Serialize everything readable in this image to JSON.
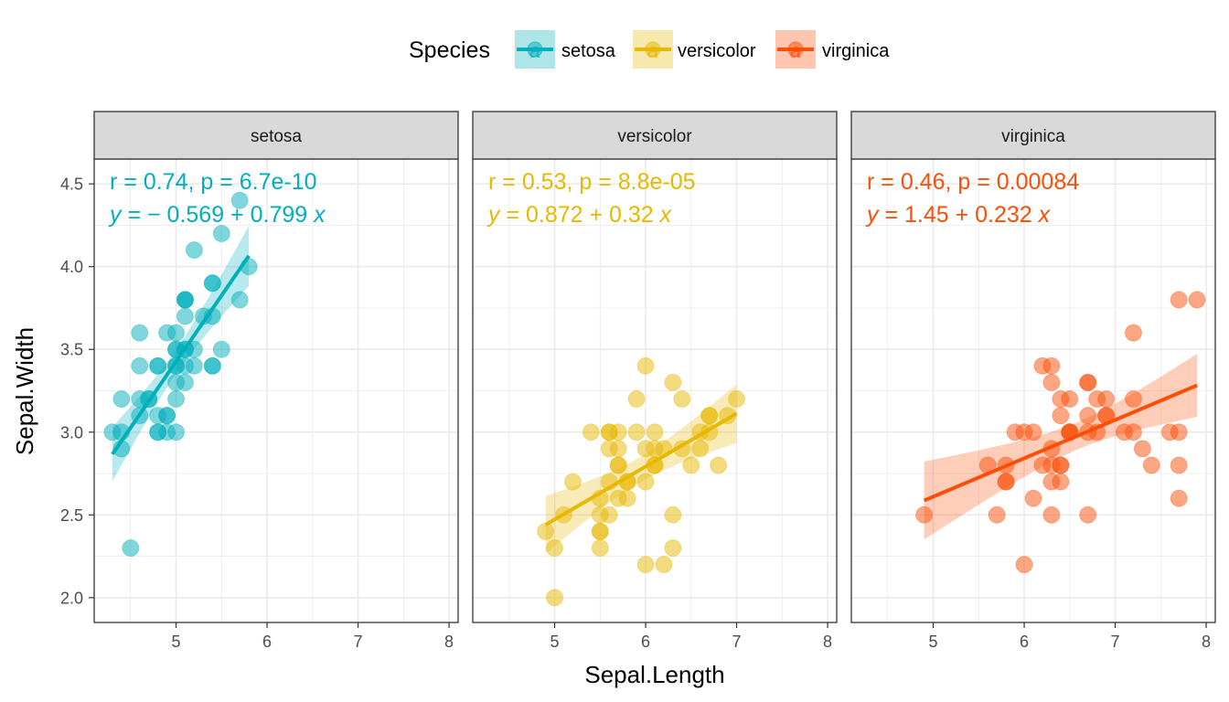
{
  "chart_data": {
    "type": "scatter",
    "xlabel": "Sepal.Length",
    "ylabel": "Sepal.Width",
    "xlim": [
      4.1,
      8.1
    ],
    "ylim": [
      1.85,
      4.65
    ],
    "x_ticks": [
      5,
      6,
      7,
      8
    ],
    "y_ticks": [
      2.0,
      2.5,
      3.0,
      3.5,
      4.0,
      4.5
    ],
    "y_tick_labels": [
      "2.0",
      "2.5",
      "3.0",
      "3.5",
      "4.0",
      "4.5"
    ],
    "grid": true,
    "legend": {
      "title": "Species",
      "position": "top",
      "items": [
        "setosa",
        "versicolor",
        "virginica"
      ]
    },
    "panels": [
      {
        "name": "setosa",
        "color": "#00AFBB",
        "stat_r": "r = 0.74, p = 6.7e-10",
        "eq_y": "y",
        "eq_rest": " = − 0.569 + 0.799 ",
        "eq_x": "x",
        "fit": {
          "x": [
            4.3,
            5.8
          ],
          "intercept": -0.569,
          "slope": 0.799
        },
        "points": [
          [
            5.1,
            3.5
          ],
          [
            4.9,
            3.0
          ],
          [
            4.7,
            3.2
          ],
          [
            4.6,
            3.1
          ],
          [
            5.0,
            3.6
          ],
          [
            5.4,
            3.9
          ],
          [
            4.6,
            3.4
          ],
          [
            5.0,
            3.4
          ],
          [
            4.4,
            2.9
          ],
          [
            4.9,
            3.1
          ],
          [
            5.4,
            3.7
          ],
          [
            4.8,
            3.4
          ],
          [
            4.8,
            3.0
          ],
          [
            4.3,
            3.0
          ],
          [
            5.8,
            4.0
          ],
          [
            5.7,
            4.4
          ],
          [
            5.4,
            3.9
          ],
          [
            5.1,
            3.5
          ],
          [
            5.7,
            3.8
          ],
          [
            5.1,
            3.8
          ],
          [
            5.4,
            3.4
          ],
          [
            5.1,
            3.7
          ],
          [
            4.6,
            3.6
          ],
          [
            5.1,
            3.3
          ],
          [
            4.8,
            3.4
          ],
          [
            5.0,
            3.0
          ],
          [
            5.0,
            3.4
          ],
          [
            5.2,
            3.5
          ],
          [
            5.2,
            3.4
          ],
          [
            4.7,
            3.2
          ],
          [
            4.8,
            3.1
          ],
          [
            5.4,
            3.4
          ],
          [
            5.2,
            4.1
          ],
          [
            5.5,
            4.2
          ],
          [
            4.9,
            3.1
          ],
          [
            5.0,
            3.2
          ],
          [
            5.5,
            3.5
          ],
          [
            4.9,
            3.6
          ],
          [
            4.4,
            3.0
          ],
          [
            5.1,
            3.4
          ],
          [
            5.0,
            3.5
          ],
          [
            4.5,
            2.3
          ],
          [
            4.4,
            3.2
          ],
          [
            5.0,
            3.5
          ],
          [
            5.1,
            3.8
          ],
          [
            4.8,
            3.0
          ],
          [
            5.1,
            3.8
          ],
          [
            4.6,
            3.2
          ],
          [
            5.3,
            3.7
          ],
          [
            5.0,
            3.3
          ]
        ]
      },
      {
        "name": "versicolor",
        "color": "#E7B800",
        "stat_r": "r = 0.53, p = 8.8e-05",
        "eq_y": "y",
        "eq_rest": " = 0.872 + 0.32 ",
        "eq_x": "x",
        "fit": {
          "x": [
            4.9,
            7.0
          ],
          "intercept": 0.872,
          "slope": 0.32
        },
        "points": [
          [
            7.0,
            3.2
          ],
          [
            6.4,
            3.2
          ],
          [
            6.9,
            3.1
          ],
          [
            5.5,
            2.3
          ],
          [
            6.5,
            2.8
          ],
          [
            5.7,
            2.8
          ],
          [
            6.3,
            3.3
          ],
          [
            4.9,
            2.4
          ],
          [
            6.6,
            2.9
          ],
          [
            5.2,
            2.7
          ],
          [
            5.0,
            2.0
          ],
          [
            5.9,
            3.0
          ],
          [
            6.0,
            2.2
          ],
          [
            6.1,
            2.9
          ],
          [
            5.6,
            2.9
          ],
          [
            6.7,
            3.1
          ],
          [
            5.6,
            3.0
          ],
          [
            5.8,
            2.7
          ],
          [
            6.2,
            2.2
          ],
          [
            5.6,
            2.5
          ],
          [
            5.9,
            3.2
          ],
          [
            6.1,
            2.8
          ],
          [
            6.3,
            2.5
          ],
          [
            6.1,
            2.8
          ],
          [
            6.4,
            2.9
          ],
          [
            6.6,
            3.0
          ],
          [
            6.8,
            2.8
          ],
          [
            6.7,
            3.0
          ],
          [
            6.0,
            2.9
          ],
          [
            5.7,
            2.6
          ],
          [
            5.5,
            2.4
          ],
          [
            5.5,
            2.4
          ],
          [
            5.8,
            2.7
          ],
          [
            6.0,
            2.7
          ],
          [
            5.4,
            3.0
          ],
          [
            6.0,
            3.4
          ],
          [
            6.7,
            3.1
          ],
          [
            6.3,
            2.3
          ],
          [
            5.6,
            3.0
          ],
          [
            5.5,
            2.5
          ],
          [
            5.5,
            2.6
          ],
          [
            6.1,
            3.0
          ],
          [
            5.8,
            2.6
          ],
          [
            5.0,
            2.3
          ],
          [
            5.6,
            2.7
          ],
          [
            5.7,
            3.0
          ],
          [
            5.7,
            2.9
          ],
          [
            6.2,
            2.9
          ],
          [
            5.1,
            2.5
          ],
          [
            5.7,
            2.8
          ]
        ]
      },
      {
        "name": "virginica",
        "color": "#FC4E07",
        "stat_r": "r = 0.46, p = 0.00084",
        "eq_y": "y",
        "eq_rest": " = 1.45 + 0.232 ",
        "eq_x": "x",
        "fit": {
          "x": [
            4.9,
            7.9
          ],
          "intercept": 1.45,
          "slope": 0.232
        },
        "points": [
          [
            6.3,
            3.3
          ],
          [
            5.8,
            2.7
          ],
          [
            7.1,
            3.0
          ],
          [
            6.3,
            2.9
          ],
          [
            6.5,
            3.0
          ],
          [
            7.6,
            3.0
          ],
          [
            4.9,
            2.5
          ],
          [
            7.3,
            2.9
          ],
          [
            6.7,
            2.5
          ],
          [
            7.2,
            3.6
          ],
          [
            6.5,
            3.2
          ],
          [
            6.4,
            2.7
          ],
          [
            6.8,
            3.0
          ],
          [
            5.7,
            2.5
          ],
          [
            5.8,
            2.8
          ],
          [
            6.4,
            3.2
          ],
          [
            6.5,
            3.0
          ],
          [
            7.7,
            3.8
          ],
          [
            7.7,
            2.6
          ],
          [
            6.0,
            2.2
          ],
          [
            6.9,
            3.2
          ],
          [
            5.6,
            2.8
          ],
          [
            7.7,
            2.8
          ],
          [
            6.3,
            2.7
          ],
          [
            6.7,
            3.3
          ],
          [
            7.2,
            3.2
          ],
          [
            6.2,
            2.8
          ],
          [
            6.1,
            3.0
          ],
          [
            6.4,
            2.8
          ],
          [
            7.2,
            3.0
          ],
          [
            7.4,
            2.8
          ],
          [
            7.9,
            3.8
          ],
          [
            6.4,
            2.8
          ],
          [
            6.3,
            2.8
          ],
          [
            6.1,
            2.6
          ],
          [
            7.7,
            3.0
          ],
          [
            6.3,
            3.4
          ],
          [
            6.4,
            3.1
          ],
          [
            6.0,
            3.0
          ],
          [
            6.9,
            3.1
          ],
          [
            6.7,
            3.1
          ],
          [
            6.9,
            3.1
          ],
          [
            5.8,
            2.7
          ],
          [
            6.8,
            3.2
          ],
          [
            6.7,
            3.3
          ],
          [
            6.7,
            3.0
          ],
          [
            6.3,
            2.5
          ],
          [
            6.5,
            3.0
          ],
          [
            6.2,
            3.4
          ],
          [
            5.9,
            3.0
          ]
        ]
      }
    ]
  }
}
